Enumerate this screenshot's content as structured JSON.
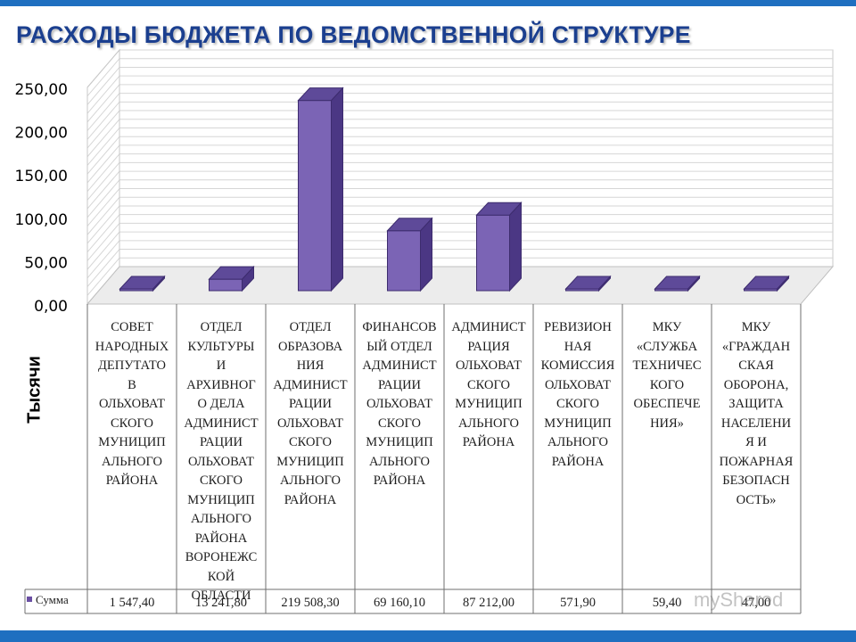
{
  "title": "РАСХОДЫ БЮДЖЕТА ПО ВЕДОМСТВЕННОЙ СТРУКТУРЕ",
  "watermark": "myShared",
  "colors": {
    "bar_front": "#7b64b5",
    "bar_side": "#4b3784",
    "bar_top": "#5e4a99",
    "accent": "#1f6fc0",
    "title": "#1b3f8f"
  },
  "chart_data": {
    "type": "bar",
    "title": "РАСХОДЫ БЮДЖЕТА ПО ВЕДОМСТВЕННОЙ СТРУКТУРЕ",
    "ylabel": "Тысячи",
    "xlabel": "",
    "ylim": [
      0,
      250
    ],
    "yticks": [
      0,
      50,
      100,
      150,
      200,
      250
    ],
    "ytick_labels": [
      "0,00",
      "50,00",
      "100,00",
      "150,00",
      "200,00",
      "250,00"
    ],
    "grid": true,
    "legend": "bottom-left data table",
    "categories": [
      "СОВЕТ НАРОДНЫХ ДЕПУТАТО В ОЛЬХОВАТ СКОГО МУНИЦИП АЛЬНОГО РАЙОНА",
      "ОТДЕЛ КУЛЬТУРЫ И АРХИВНОГ О ДЕЛА АДМИНИСТ РАЦИИ ОЛЬХОВАТ СКОГО МУНИЦИП АЛЬНОГО РАЙОНА ВОРОНЕЖС КОЙ ОБЛАСТИ",
      "ОТДЕЛ ОБРАЗОВА НИЯ АДМИНИСТ РАЦИИ ОЛЬХОВАТ СКОГО МУНИЦИП АЛЬНОГО РАЙОНА",
      "ФИНАНСОВ ЫЙ ОТДЕЛ АДМИНИСТ РАЦИИ ОЛЬХОВАТ СКОГО МУНИЦИП АЛЬНОГО РАЙОНА",
      "АДМИНИСТ РАЦИЯ ОЛЬХОВАТ СКОГО МУНИЦИП АЛЬНОГО РАЙОНА",
      "РЕВИЗИОН НАЯ КОМИССИЯ ОЛЬХОВАТ СКОГО МУНИЦИП АЛЬНОГО РАЙОНА",
      "МКУ «СЛУЖБА ТЕХНИЧЕС КОГО ОБЕСПЕЧЕ НИЯ»",
      "МКУ «ГРАЖДАН СКАЯ ОБОРОНА, ЗАЩИТА НАСЕЛЕНИ Я И ПОЖАРНАЯ БЕЗОПАСН ОСТЬ»"
    ],
    "category_lines": [
      [
        "СОВЕТ",
        "НАРОДНЫХ",
        "ДЕПУТАТО",
        "В",
        "ОЛЬХОВАТ",
        "СКОГО",
        "МУНИЦИП",
        "АЛЬНОГО",
        "РАЙОНА"
      ],
      [
        "ОТДЕЛ",
        "КУЛЬТУРЫ",
        "И",
        "АРХИВНОГ",
        "О ДЕЛА",
        "АДМИНИСТ",
        "РАЦИИ",
        "ОЛЬХОВАТ",
        "СКОГО",
        "МУНИЦИП",
        "АЛЬНОГО",
        "РАЙОНА",
        "ВОРОНЕЖС",
        "КОЙ",
        "ОБЛАСТИ"
      ],
      [
        "ОТДЕЛ",
        "ОБРАЗОВА",
        "НИЯ",
        "АДМИНИСТ",
        "РАЦИИ",
        "ОЛЬХОВАТ",
        "СКОГО",
        "МУНИЦИП",
        "АЛЬНОГО",
        "РАЙОНА"
      ],
      [
        "ФИНАНСОВ",
        "ЫЙ ОТДЕЛ",
        "АДМИНИСТ",
        "РАЦИИ",
        "ОЛЬХОВАТ",
        "СКОГО",
        "МУНИЦИП",
        "АЛЬНОГО",
        "РАЙОНА"
      ],
      [
        "АДМИНИСТ",
        "РАЦИЯ",
        "ОЛЬХОВАТ",
        "СКОГО",
        "МУНИЦИП",
        "АЛЬНОГО",
        "РАЙОНА"
      ],
      [
        "РЕВИЗИОН",
        "НАЯ",
        "КОМИССИЯ",
        "ОЛЬХОВАТ",
        "СКОГО",
        "МУНИЦИП",
        "АЛЬНОГО",
        "РАЙОНА"
      ],
      [
        "МКУ",
        "«СЛУЖБА",
        "ТЕХНИЧЕС",
        "КОГО",
        "ОБЕСПЕЧЕ",
        "НИЯ»"
      ],
      [
        "МКУ",
        "«ГРАЖДАН",
        "СКАЯ",
        "ОБОРОНА,",
        "ЗАЩИТА",
        "НАСЕЛЕНИ",
        "Я И",
        "ПОЖАРНАЯ",
        "БЕЗОПАСН",
        "ОСТЬ»"
      ]
    ],
    "series": [
      {
        "name": "Сумма",
        "values": [
          1.5474,
          13.2418,
          219.5083,
          69.1601,
          87.212,
          0.5719,
          0.0594,
          0.047
        ],
        "labels": [
          "1 547,40",
          "13 241,80",
          "219 508,30",
          "69 160,10",
          "87 212,00",
          "571,90",
          "59,40",
          "47,00"
        ]
      }
    ]
  }
}
